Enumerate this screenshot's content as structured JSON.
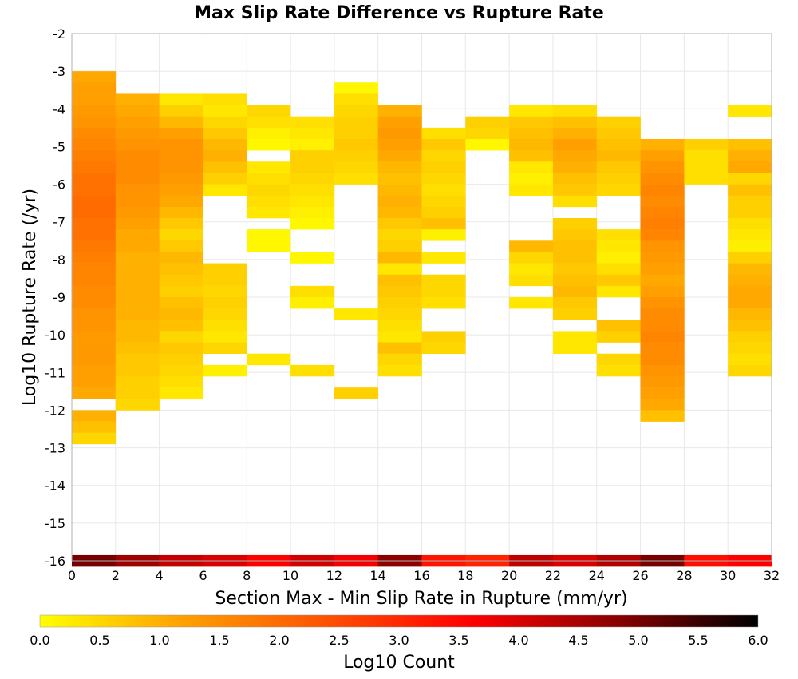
{
  "chart_data": {
    "type": "heatmap",
    "title": "Max Slip Rate Difference vs Rupture Rate",
    "xlabel": "Section Max - Min Slip Rate in Rupture (mm/yr)",
    "ylabel": "Log10 Rupture Rate (/yr)",
    "xlim": [
      0,
      32
    ],
    "ylim": [
      -16,
      -2
    ],
    "xticks": [
      "0",
      "2",
      "4",
      "6",
      "8",
      "10",
      "12",
      "14",
      "16",
      "18",
      "20",
      "22",
      "24",
      "26",
      "28",
      "30",
      "32"
    ],
    "yticks": [
      "-2",
      "-3",
      "-4",
      "-5",
      "-6",
      "-7",
      "-8",
      "-9",
      "-10",
      "-11",
      "-12",
      "-13",
      "-14",
      "-15",
      "-16"
    ],
    "grid": true,
    "bin_width_x": 2,
    "bin_height_y": 0.3,
    "colorbar": {
      "label": "Log10 Count",
      "min": 0.0,
      "max": 6.0,
      "ticks": [
        "0.0",
        "0.5",
        "1.0",
        "1.5",
        "2.0",
        "2.5",
        "3.0",
        "3.5",
        "4.0",
        "4.5",
        "5.0",
        "5.5",
        "6.0"
      ],
      "colors": [
        "#ffff00",
        "#ffa000",
        "#ff5000",
        "#ff0000",
        "#8c0000",
        "#000000"
      ]
    },
    "columns": [
      {
        "x_start": 0,
        "y_start": -3.0,
        "values": [
          1.1,
          1.2,
          1.2,
          1.3,
          1.4,
          1.5,
          1.6,
          1.7,
          1.8,
          1.9,
          1.9,
          2.0,
          2.0,
          1.9,
          1.9,
          1.8,
          1.7,
          1.6,
          1.6,
          1.5,
          1.5,
          1.4,
          1.4,
          1.3,
          1.3,
          1.3,
          1.2,
          1.2,
          1.1,
          null,
          1.0,
          0.8,
          0.5
        ]
      },
      {
        "x_start": 2,
        "y_start": -3.6,
        "values": [
          1.0,
          1.1,
          1.2,
          1.3,
          1.4,
          1.5,
          1.5,
          1.5,
          1.4,
          1.4,
          1.3,
          1.2,
          1.1,
          1.1,
          1.0,
          1.0,
          1.0,
          1.0,
          1.0,
          1.0,
          0.9,
          0.9,
          0.8,
          0.7,
          0.7,
          0.6,
          0.6,
          0.5
        ]
      },
      {
        "x_start": 4,
        "y_start": -3.6,
        "values": [
          0.3,
          0.6,
          0.9,
          1.2,
          1.4,
          1.4,
          1.4,
          1.3,
          1.2,
          1.1,
          0.9,
          0.7,
          0.5,
          0.7,
          0.9,
          0.8,
          0.7,
          0.6,
          0.8,
          0.9,
          0.8,
          0.5,
          0.7,
          0.6,
          0.5,
          0.4,
          0.3
        ]
      },
      {
        "x_start": 6,
        "y_start": -3.6,
        "values": [
          0.4,
          0.3,
          0.5,
          0.7,
          0.9,
          1.0,
          0.8,
          0.6,
          0.3,
          null,
          null,
          null,
          null,
          null,
          null,
          0.6,
          0.6,
          0.5,
          0.6,
          0.5,
          0.4,
          0.3,
          0.5,
          null,
          0.2
        ]
      },
      {
        "x_start": 8,
        "y_start": -3.9,
        "values": [
          0.5,
          0.4,
          0.2,
          0.1,
          null,
          0.3,
          0.4,
          0.5,
          0.4,
          0.3,
          null,
          0.1,
          0.1,
          null,
          null,
          null,
          null,
          null,
          null,
          null,
          null,
          null,
          0.3
        ]
      },
      {
        "x_start": 10,
        "y_start": -4.2,
        "values": [
          0.4,
          0.3,
          0.2,
          0.6,
          0.6,
          0.5,
          0.4,
          0.3,
          0.2,
          0.1,
          null,
          null,
          0.1,
          null,
          null,
          0.4,
          0.2,
          null,
          null,
          null,
          null,
          null,
          0.4
        ]
      },
      {
        "x_start": 12,
        "y_start": -3.3,
        "values": [
          0.1,
          0.4,
          0.5,
          0.6,
          0.6,
          0.7,
          0.6,
          0.5,
          0.4,
          null,
          null,
          null,
          null,
          null,
          null,
          null,
          null,
          null,
          null,
          null,
          0.3,
          null,
          null,
          null,
          null,
          null,
          null,
          0.6
        ]
      },
      {
        "x_start": 14,
        "y_start": -3.9,
        "values": [
          1.0,
          1.2,
          1.3,
          1.2,
          1.1,
          0.9,
          0.8,
          0.9,
          1.0,
          0.9,
          0.7,
          0.5,
          0.6,
          0.9,
          0.3,
          0.8,
          0.7,
          0.6,
          0.5,
          0.4,
          0.3,
          0.8,
          0.5,
          0.4
        ]
      },
      {
        "x_start": 16,
        "y_start": -4.5,
        "values": [
          0.4,
          0.7,
          0.5,
          0.6,
          0.5,
          0.4,
          0.5,
          0.6,
          0.8,
          0.2,
          null,
          0.3,
          null,
          0.5,
          0.5,
          0.4,
          null,
          null,
          0.6,
          0.5
        ]
      },
      {
        "x_start": 18,
        "y_start": -4.2,
        "values": [
          0.6,
          0.5,
          0.1
        ]
      },
      {
        "x_start": 20,
        "y_start": -3.9,
        "values": [
          0.3,
          0.7,
          0.8,
          0.9,
          0.8,
          0.3,
          0.2,
          0.3,
          null,
          null,
          null,
          null,
          0.9,
          0.5,
          0.3,
          0.4,
          null,
          0.3
        ]
      },
      {
        "x_start": 22,
        "y_start": -3.9,
        "values": [
          0.4,
          0.8,
          1.0,
          1.2,
          1.1,
          1.0,
          0.8,
          0.7,
          0.4,
          null,
          0.6,
          0.7,
          0.8,
          0.8,
          0.7,
          0.8,
          0.9,
          0.7,
          0.6,
          null,
          0.3,
          0.3
        ]
      },
      {
        "x_start": 24,
        "y_start": -4.2,
        "values": [
          0.6,
          0.7,
          0.8,
          0.9,
          0.7,
          0.6,
          0.5,
          null,
          null,
          null,
          0.4,
          0.3,
          0.2,
          0.4,
          0.7,
          0.3,
          null,
          null,
          0.8,
          0.6,
          null,
          0.5,
          0.4
        ]
      },
      {
        "x_start": 26,
        "y_start": -4.8,
        "values": [
          1.0,
          1.2,
          1.4,
          1.5,
          1.6,
          1.5,
          1.6,
          1.7,
          1.6,
          1.4,
          1.3,
          1.2,
          1.1,
          1.2,
          1.4,
          1.5,
          1.5,
          1.6,
          1.5,
          1.5,
          1.4,
          1.3,
          1.2,
          1.1,
          0.8
        ]
      },
      {
        "x_start": 28,
        "y_start": -4.8,
        "values": [
          0.6,
          0.4,
          0.4,
          0.4
        ]
      },
      {
        "x_start": 30,
        "y_start": -3.9,
        "values": [
          0.3,
          null,
          null,
          0.8,
          1.0,
          1.1,
          0.5,
          0.8,
          0.6,
          0.6,
          0.4,
          0.3,
          0.2,
          0.6,
          0.9,
          1.0,
          1.1,
          1.1,
          0.9,
          0.8,
          0.6,
          0.5,
          0.4,
          0.5
        ]
      },
      {
        "x_start": 0,
        "y_start": -15.85,
        "values": [
          5.0
        ]
      },
      {
        "x_start": 2,
        "y_start": -15.85,
        "values": [
          4.6
        ]
      },
      {
        "x_start": 4,
        "y_start": -15.85,
        "values": [
          4.2
        ]
      },
      {
        "x_start": 6,
        "y_start": -15.85,
        "values": [
          4.0
        ]
      },
      {
        "x_start": 8,
        "y_start": -15.85,
        "values": [
          3.6
        ]
      },
      {
        "x_start": 10,
        "y_start": -15.85,
        "values": [
          4.1
        ]
      },
      {
        "x_start": 12,
        "y_start": -15.85,
        "values": [
          3.7
        ]
      },
      {
        "x_start": 14,
        "y_start": -15.85,
        "values": [
          4.8
        ]
      },
      {
        "x_start": 16,
        "y_start": -15.85,
        "values": [
          3.3
        ]
      },
      {
        "x_start": 18,
        "y_start": -15.85,
        "values": [
          3.1
        ]
      },
      {
        "x_start": 20,
        "y_start": -15.85,
        "values": [
          4.3
        ]
      },
      {
        "x_start": 22,
        "y_start": -15.85,
        "values": [
          4.0
        ]
      },
      {
        "x_start": 24,
        "y_start": -15.85,
        "values": [
          4.4
        ]
      },
      {
        "x_start": 26,
        "y_start": -15.85,
        "values": [
          5.0
        ]
      },
      {
        "x_start": 28,
        "y_start": -15.85,
        "values": [
          3.4
        ]
      },
      {
        "x_start": 30,
        "y_start": -15.85,
        "values": [
          3.6
        ]
      }
    ]
  }
}
